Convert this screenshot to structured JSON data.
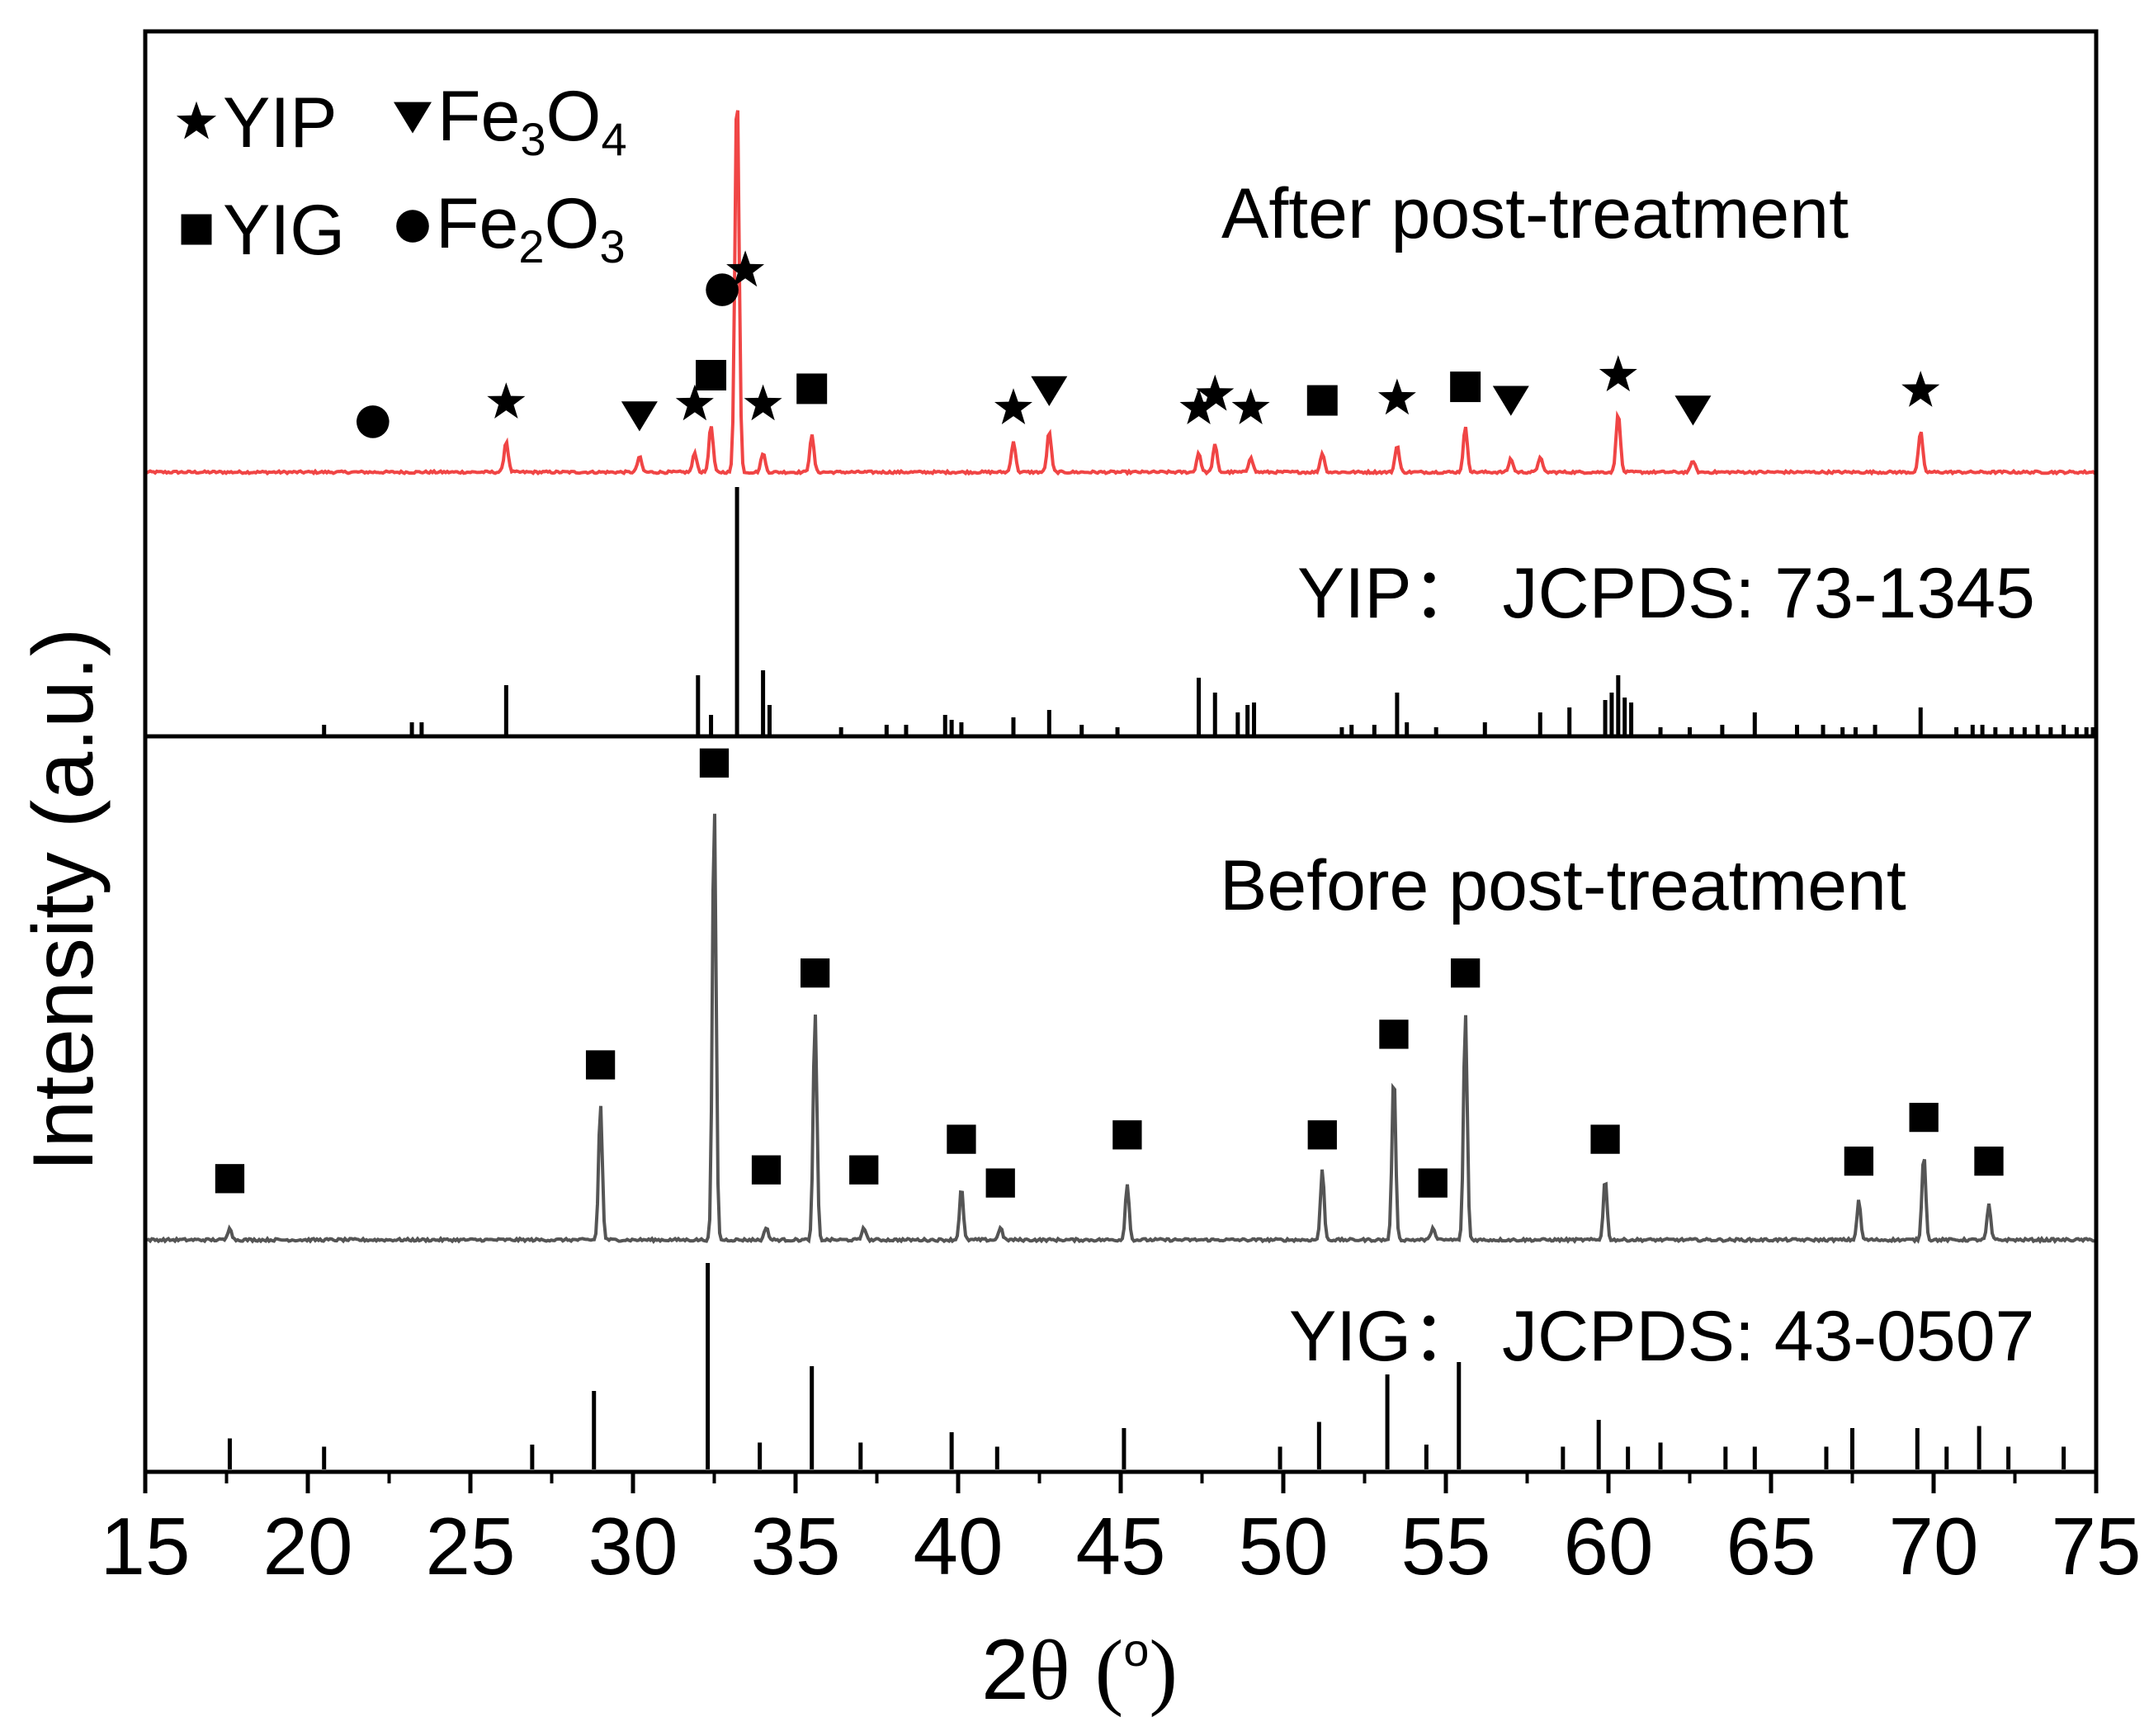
{
  "chart_data": {
    "type": "line",
    "subtype": "stacked XRD patterns with reference stick patterns",
    "xlabel": "2θ  (°)",
    "xlabel_parts": {
      "pre": "2",
      "theta": "θ",
      "deg_open": "(",
      "deg_sym": "o",
      "deg_close": ")"
    },
    "ylabel": "Intensity (a.u.)",
    "xlim": [
      15,
      75
    ],
    "x_ticks": [
      15,
      20,
      25,
      30,
      35,
      40,
      45,
      50,
      55,
      60,
      65,
      70,
      75
    ],
    "x_tick_labels": [
      "15",
      "20",
      "25",
      "30",
      "35",
      "40",
      "45",
      "50",
      "55",
      "60",
      "65",
      "70",
      "75"
    ],
    "colors": {
      "after": "#f04545",
      "before": "#555555",
      "reference": "#000000",
      "frame": "#000000"
    },
    "legend": [
      {
        "symbol": "star",
        "label": "YIP"
      },
      {
        "symbol": "triangle-down",
        "label": "Fe",
        "sub1": "3",
        "mid": "O",
        "sub2": "4"
      },
      {
        "symbol": "square",
        "label": "YIG"
      },
      {
        "symbol": "circle",
        "label": "Fe",
        "sub1": "2",
        "mid": "O",
        "sub2": "3"
      }
    ],
    "panels": {
      "after": {
        "label": "After post-treatment",
        "color": "#f04545",
        "peaks": [
          {
            "x": 26.1,
            "h": 16,
            "m": "star",
            "mh": 36
          },
          {
            "x": 30.2,
            "h": 8,
            "m": "tri",
            "mh": 29
          },
          {
            "x": 31.9,
            "h": 10,
            "m": "star",
            "mh": 35
          },
          {
            "x": 32.4,
            "h": 24,
            "m": "square",
            "mh": 50
          },
          {
            "x": 33.2,
            "h": 100,
            "m": "star",
            "mh": 104
          },
          {
            "x": 33.2,
            "h": 100,
            "m": "circle",
            "mh": 94
          },
          {
            "x": 34.0,
            "h": 10,
            "m": "star",
            "mh": 35
          },
          {
            "x": 35.5,
            "h": 19,
            "m": "square",
            "mh": 43
          },
          {
            "x": 41.7,
            "h": 16,
            "m": "star",
            "mh": 33
          },
          {
            "x": 42.8,
            "h": 21,
            "m": "tri",
            "mh": 42
          },
          {
            "x": 47.4,
            "h": 10,
            "m": "star",
            "mh": 33
          },
          {
            "x": 47.9,
            "h": 14,
            "m": "star",
            "mh": 40
          },
          {
            "x": 49.0,
            "h": 8,
            "m": "star",
            "mh": 33
          },
          {
            "x": 51.2,
            "h": 10,
            "m": "square",
            "mh": 37
          },
          {
            "x": 53.5,
            "h": 14,
            "m": "star",
            "mh": 38
          },
          {
            "x": 55.6,
            "h": 23,
            "m": "square",
            "mh": 44
          },
          {
            "x": 57.0,
            "h": 7,
            "m": "tri",
            "mh": 37
          },
          {
            "x": 57.9,
            "h": 8,
            "m": null,
            "mh": 0
          },
          {
            "x": 60.3,
            "h": 31,
            "m": "star",
            "mh": 50
          },
          {
            "x": 62.6,
            "h": 6,
            "m": "tri",
            "mh": 32
          },
          {
            "x": 69.6,
            "h": 21,
            "m": "star",
            "mh": 42
          }
        ],
        "unmarked_circle": {
          "x": 22.0,
          "mh": 26
        }
      },
      "yip_reference": {
        "label": "YIP：  JCPDS: 73-1345",
        "sticks": [
          {
            "x": 20.5,
            "h": 4
          },
          {
            "x": 23.2,
            "h": 5
          },
          {
            "x": 23.5,
            "h": 5
          },
          {
            "x": 26.1,
            "h": 20
          },
          {
            "x": 32.0,
            "h": 24
          },
          {
            "x": 32.4,
            "h": 8
          },
          {
            "x": 33.2,
            "h": 100
          },
          {
            "x": 34.0,
            "h": 26
          },
          {
            "x": 34.2,
            "h": 12
          },
          {
            "x": 36.4,
            "h": 3
          },
          {
            "x": 37.8,
            "h": 4
          },
          {
            "x": 38.4,
            "h": 4
          },
          {
            "x": 39.6,
            "h": 8
          },
          {
            "x": 39.8,
            "h": 6
          },
          {
            "x": 40.1,
            "h": 5
          },
          {
            "x": 41.7,
            "h": 7
          },
          {
            "x": 42.8,
            "h": 10
          },
          {
            "x": 43.8,
            "h": 4
          },
          {
            "x": 44.9,
            "h": 3
          },
          {
            "x": 47.4,
            "h": 23
          },
          {
            "x": 47.9,
            "h": 17
          },
          {
            "x": 48.6,
            "h": 9
          },
          {
            "x": 48.9,
            "h": 12
          },
          {
            "x": 49.1,
            "h": 13
          },
          {
            "x": 51.8,
            "h": 3
          },
          {
            "x": 52.1,
            "h": 4
          },
          {
            "x": 52.8,
            "h": 4
          },
          {
            "x": 53.5,
            "h": 17
          },
          {
            "x": 53.8,
            "h": 5
          },
          {
            "x": 54.7,
            "h": 3
          },
          {
            "x": 56.2,
            "h": 5
          },
          {
            "x": 57.9,
            "h": 9
          },
          {
            "x": 58.8,
            "h": 11
          },
          {
            "x": 59.9,
            "h": 14
          },
          {
            "x": 60.1,
            "h": 17
          },
          {
            "x": 60.3,
            "h": 24
          },
          {
            "x": 60.5,
            "h": 15
          },
          {
            "x": 60.7,
            "h": 13
          },
          {
            "x": 61.6,
            "h": 3
          },
          {
            "x": 62.5,
            "h": 3
          },
          {
            "x": 63.5,
            "h": 4
          },
          {
            "x": 64.5,
            "h": 9
          },
          {
            "x": 65.8,
            "h": 4
          },
          {
            "x": 66.6,
            "h": 4
          },
          {
            "x": 67.2,
            "h": 3
          },
          {
            "x": 67.6,
            "h": 3
          },
          {
            "x": 68.2,
            "h": 4
          },
          {
            "x": 69.6,
            "h": 11
          },
          {
            "x": 70.7,
            "h": 3
          },
          {
            "x": 71.2,
            "h": 4
          },
          {
            "x": 71.5,
            "h": 4
          },
          {
            "x": 71.9,
            "h": 3
          },
          {
            "x": 72.4,
            "h": 3
          },
          {
            "x": 72.8,
            "h": 3
          },
          {
            "x": 73.2,
            "h": 4
          },
          {
            "x": 73.6,
            "h": 3
          },
          {
            "x": 74.0,
            "h": 4
          },
          {
            "x": 74.4,
            "h": 3
          },
          {
            "x": 74.7,
            "h": 3
          },
          {
            "x": 74.9,
            "h": 3
          }
        ]
      },
      "before": {
        "label": "Before post-treatment",
        "color": "#555555",
        "peaks": [
          {
            "x": 17.6,
            "h": 3,
            "m": "square",
            "mh": 14
          },
          {
            "x": 29.0,
            "h": 31,
            "m": "square",
            "mh": 40
          },
          {
            "x": 32.5,
            "h": 100,
            "m": "square",
            "mh": 109
          },
          {
            "x": 34.1,
            "h": 3,
            "m": "square",
            "mh": 16
          },
          {
            "x": 35.6,
            "h": 52,
            "m": "square",
            "mh": 61
          },
          {
            "x": 37.1,
            "h": 3,
            "m": "square",
            "mh": 16
          },
          {
            "x": 40.1,
            "h": 12,
            "m": "square",
            "mh": 23
          },
          {
            "x": 41.3,
            "h": 3,
            "m": "square",
            "mh": 13
          },
          {
            "x": 45.2,
            "h": 13,
            "m": "square",
            "mh": 24
          },
          {
            "x": 51.2,
            "h": 16,
            "m": "square",
            "mh": 24
          },
          {
            "x": 53.4,
            "h": 38,
            "m": "square",
            "mh": 47
          },
          {
            "x": 54.6,
            "h": 3,
            "m": "square",
            "mh": 13
          },
          {
            "x": 55.6,
            "h": 52,
            "m": "square",
            "mh": 61
          },
          {
            "x": 59.9,
            "h": 14,
            "m": "square",
            "mh": 23
          },
          {
            "x": 67.7,
            "h": 9,
            "m": "square",
            "mh": 18
          },
          {
            "x": 69.7,
            "h": 20,
            "m": "square",
            "mh": 28
          },
          {
            "x": 71.7,
            "h": 8,
            "m": "square",
            "mh": 18
          }
        ]
      },
      "yig_reference": {
        "label": "YIG：  JCPDS: 43-0507",
        "sticks": [
          {
            "x": 17.6,
            "h": 15
          },
          {
            "x": 20.5,
            "h": 11
          },
          {
            "x": 26.9,
            "h": 12
          },
          {
            "x": 28.8,
            "h": 38
          },
          {
            "x": 32.3,
            "h": 100
          },
          {
            "x": 33.9,
            "h": 13
          },
          {
            "x": 35.5,
            "h": 50
          },
          {
            "x": 37.0,
            "h": 13
          },
          {
            "x": 39.8,
            "h": 18
          },
          {
            "x": 41.2,
            "h": 11
          },
          {
            "x": 45.1,
            "h": 20
          },
          {
            "x": 49.9,
            "h": 11
          },
          {
            "x": 51.1,
            "h": 23
          },
          {
            "x": 53.2,
            "h": 46
          },
          {
            "x": 54.4,
            "h": 12
          },
          {
            "x": 55.4,
            "h": 52
          },
          {
            "x": 58.6,
            "h": 11
          },
          {
            "x": 59.7,
            "h": 24
          },
          {
            "x": 60.6,
            "h": 11
          },
          {
            "x": 61.6,
            "h": 13
          },
          {
            "x": 63.6,
            "h": 11
          },
          {
            "x": 64.5,
            "h": 11
          },
          {
            "x": 66.7,
            "h": 11
          },
          {
            "x": 67.5,
            "h": 20
          },
          {
            "x": 69.5,
            "h": 20
          },
          {
            "x": 70.4,
            "h": 11
          },
          {
            "x": 71.4,
            "h": 21
          },
          {
            "x": 72.3,
            "h": 11
          },
          {
            "x": 74.0,
            "h": 11
          }
        ]
      }
    }
  }
}
